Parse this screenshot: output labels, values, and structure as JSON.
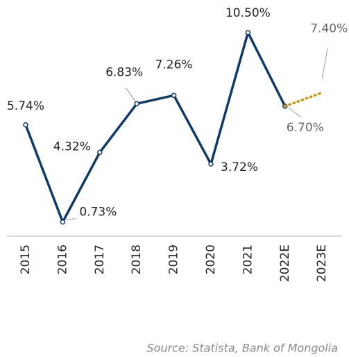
{
  "chart_data": {
    "type": "line",
    "categories": [
      "2015",
      "2016",
      "2017",
      "2018",
      "2019",
      "2020",
      "2021",
      "2022E",
      "2023E"
    ],
    "series": [
      {
        "color": "#0d3a6b",
        "style": "solid",
        "values": [
          5.74,
          0.73,
          4.32,
          6.83,
          7.26,
          3.72,
          10.5,
          6.7,
          null
        ],
        "value_labels": [
          "5.74%",
          "0.73%",
          "4.32%",
          "6.83%",
          "7.26%",
          "3.72%",
          "10.50%",
          "6.70%",
          null
        ]
      },
      {
        "color": "#d4940a",
        "style": "dotted",
        "values": [
          null,
          null,
          null,
          null,
          null,
          null,
          null,
          6.7,
          7.4
        ],
        "value_labels": [
          null,
          null,
          null,
          null,
          null,
          null,
          null,
          null,
          "7.40%"
        ]
      }
    ],
    "ylim": [
      0,
      12
    ],
    "source": "Source: Statista, Bank of Mongolia"
  }
}
